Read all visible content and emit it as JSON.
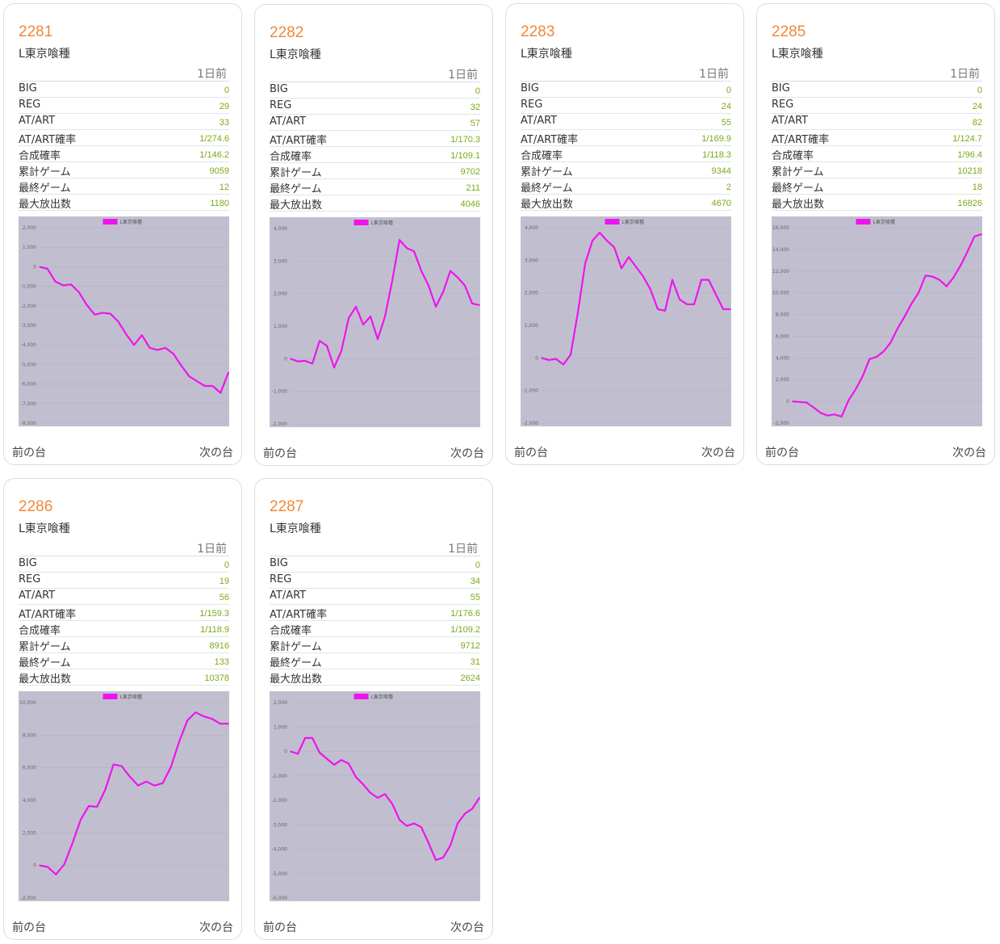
{
  "labels": {
    "day": "1日前",
    "prev": "前の台",
    "next": "次の台"
  },
  "stat_labels": [
    "BIG",
    "REG",
    "AT/ART",
    "AT/ART確率",
    "合成確率",
    "累計ゲーム",
    "最終ゲーム",
    "最大放出数"
  ],
  "colors": {
    "number": "#f0883a",
    "value": "#7aaa1a",
    "line": "#ee14ee",
    "plot_bg": "#c1bfcf"
  },
  "machines": [
    {
      "number": "2281",
      "model": "L東京喰種",
      "stats": [
        "0",
        "29",
        "33",
        "1/274.6",
        "1/146.2",
        "9059",
        "12",
        "1180"
      ],
      "chart_data": {
        "type": "line",
        "legend": "L東京喰種",
        "legend_position": "top",
        "yticks": [
          "2,000",
          "1,000",
          "0",
          "-1,000",
          "-2,000",
          "-3,000",
          "-4,000",
          "-5,000",
          "-6,000",
          "-7,000",
          "-8,000"
        ],
        "ylim": [
          -8000,
          2000
        ],
        "series": [
          {
            "name": "L東京喰種",
            "values": [
              0,
              -100,
              -750,
              -950,
              -900,
              -1300,
              -1950,
              -2450,
              -2350,
              -2400,
              -2800,
              -3450,
              -4000,
              -3500,
              -4150,
              -4250,
              -4150,
              -4450,
              -5050,
              -5600,
              -5850,
              -6100,
              -6100,
              -6450,
              -5400
            ]
          }
        ]
      }
    },
    {
      "number": "2282",
      "model": "L東京喰種",
      "stats": [
        "0",
        "32",
        "57",
        "1/170.3",
        "1/109.1",
        "9702",
        "211",
        "4046"
      ],
      "chart_data": {
        "type": "line",
        "legend": "L東京喰種",
        "legend_position": "top",
        "yticks": [
          "4,000",
          "3,000",
          "2,000",
          "1,000",
          "0",
          "-1,000",
          "-2,000"
        ],
        "ylim": [
          -2000,
          4000
        ],
        "series": [
          {
            "name": "L東京喰種",
            "values": [
              0,
              -80,
              -60,
              -150,
              550,
              400,
              -270,
              250,
              1250,
              1600,
              1050,
              1300,
              600,
              1300,
              2400,
              3650,
              3400,
              3300,
              2700,
              2250,
              1600,
              2050,
              2700,
              2500,
              2250,
              1700,
              1650
            ]
          }
        ]
      }
    },
    {
      "number": "2283",
      "model": "L東京喰種",
      "stats": [
        "0",
        "24",
        "55",
        "1/169.9",
        "1/118.3",
        "9344",
        "2",
        "4670"
      ],
      "chart_data": {
        "type": "line",
        "legend": "L東京喰種",
        "legend_position": "top",
        "yticks": [
          "4,000",
          "3,000",
          "2,000",
          "1,000",
          "0",
          "-1,000",
          "-2,000"
        ],
        "ylim": [
          -2000,
          4000
        ],
        "series": [
          {
            "name": "L東京喰種",
            "values": [
              0,
              -60,
              -30,
              -200,
              100,
              1400,
              2900,
              3600,
              3850,
              3600,
              3400,
              2750,
              3100,
              2800,
              2500,
              2100,
              1500,
              1450,
              2400,
              1800,
              1650,
              1650,
              2400,
              2400,
              1950,
              1500,
              1500
            ]
          }
        ]
      }
    },
    {
      "number": "2285",
      "model": "L東京喰種",
      "stats": [
        "0",
        "24",
        "82",
        "1/124.7",
        "1/96.4",
        "10218",
        "18",
        "16826"
      ],
      "chart_data": {
        "type": "line",
        "legend": "L東京喰種",
        "legend_position": "top",
        "yticks": [
          "16,000",
          "14,000",
          "12,000",
          "10,000",
          "8,000",
          "6,000",
          "4,000",
          "2,000",
          "0",
          "-2,000"
        ],
        "ylim": [
          -2000,
          16000
        ],
        "series": [
          {
            "name": "L東京喰種",
            "values": [
              0,
              -50,
              -100,
              -550,
              -1050,
              -1300,
              -1200,
              -1400,
              100,
              1100,
              2300,
              3900,
              4100,
              4600,
              5400,
              6700,
              7800,
              9000,
              10000,
              11600,
              11500,
              11200,
              10600,
              11400,
              12500,
              13800,
              15200,
              15400
            ]
          }
        ]
      }
    },
    {
      "number": "2286",
      "model": "L東京喰種",
      "stats": [
        "0",
        "19",
        "56",
        "1/159.3",
        "1/118.9",
        "8916",
        "133",
        "10378"
      ],
      "chart_data": {
        "type": "line",
        "legend": "L東京喰種",
        "legend_position": "top",
        "yticks": [
          "10,000",
          "8,000",
          "6,000",
          "4,000",
          "2,000",
          "0",
          "-2,000"
        ],
        "ylim": [
          -2000,
          10000
        ],
        "series": [
          {
            "name": "L東京喰種",
            "values": [
              0,
              -100,
              -550,
              50,
              1350,
              2800,
              3650,
              3600,
              4650,
              6200,
              6100,
              5450,
              4900,
              5150,
              4900,
              5050,
              6050,
              7600,
              8900,
              9400,
              9150,
              9000,
              8700,
              8700
            ]
          }
        ]
      }
    },
    {
      "number": "2287",
      "model": "L東京喰種",
      "stats": [
        "0",
        "34",
        "55",
        "1/176.6",
        "1/109.2",
        "9712",
        "31",
        "2624"
      ],
      "chart_data": {
        "type": "line",
        "legend": "L東京喰種",
        "legend_position": "top",
        "yticks": [
          "2,000",
          "1,000",
          "0",
          "-1,000",
          "-2,000",
          "-3,000",
          "-4,000",
          "-5,000",
          "-6,000"
        ],
        "ylim": [
          -6000,
          2000
        ],
        "series": [
          {
            "name": "L東京喰種",
            "values": [
              0,
              -100,
              550,
              550,
              -50,
              -300,
              -550,
              -350,
              -500,
              -1050,
              -1350,
              -1700,
              -1900,
              -1750,
              -2150,
              -2800,
              -3050,
              -2950,
              -3100,
              -3750,
              -4450,
              -4350,
              -3850,
              -2950,
              -2550,
              -2350,
              -1900
            ]
          }
        ]
      }
    }
  ]
}
